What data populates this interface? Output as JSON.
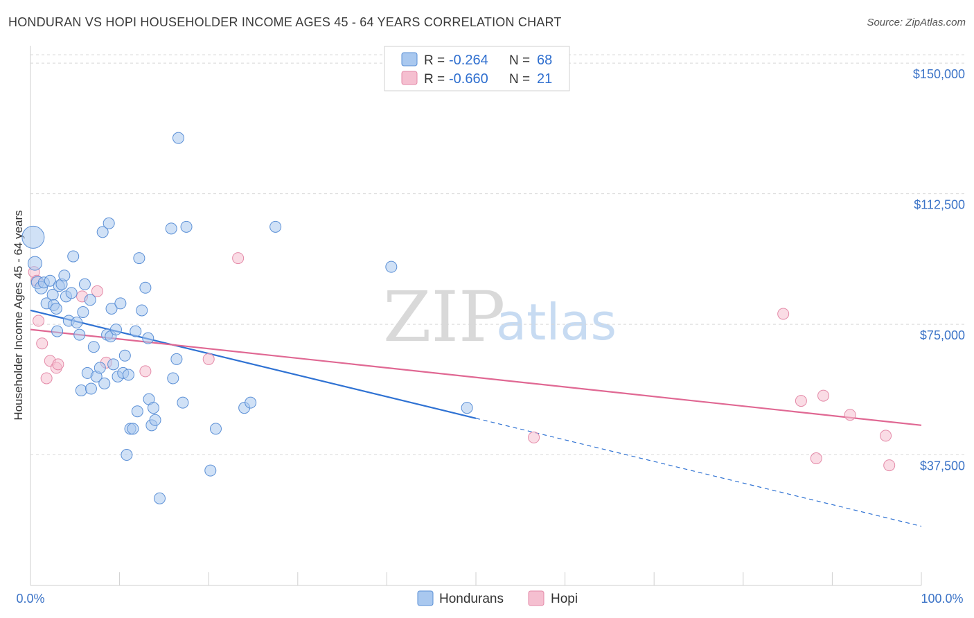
{
  "title": "HONDURAN VS HOPI HOUSEHOLDER INCOME AGES 45 - 64 YEARS CORRELATION CHART",
  "source": "Source: ZipAtlas.com",
  "watermark": {
    "zip": "ZIP",
    "atlas": "atlas"
  },
  "colors": {
    "blue_fill": "#a9c8ef",
    "blue_stroke": "#5a8fd6",
    "blue_line": "#2f72d3",
    "pink_fill": "#f5bfd0",
    "pink_stroke": "#e48aa8",
    "pink_line": "#e06893",
    "axis_label": "#3b73c7",
    "grid": "#d8d8d8"
  },
  "legend": {
    "rows": [
      {
        "r_label": "R =",
        "r_value": "-0.264",
        "n_label": "N =",
        "n_value": "68"
      },
      {
        "r_label": "R =",
        "r_value": "-0.660",
        "n_label": "N =",
        "n_value": "21"
      }
    ]
  },
  "bottom_legend": [
    "Hondurans",
    "Hopi"
  ],
  "chart_data": {
    "type": "scatter",
    "title": "HONDURAN VS HOPI HOUSEHOLDER INCOME AGES 45 - 64 YEARS CORRELATION CHART",
    "xlabel": "",
    "ylabel": "Householder Income Ages 45 - 64 years",
    "xlim": [
      0,
      100
    ],
    "ylim": [
      0,
      155000
    ],
    "x_tick_labels": [
      "0.0%",
      "100.0%"
    ],
    "y_ticks": [
      37500,
      75000,
      112500,
      150000
    ],
    "y_tick_labels": [
      "$37,500",
      "$75,000",
      "$112,500",
      "$150,000"
    ],
    "series": [
      {
        "name": "Hondurans",
        "r": -0.264,
        "n": 68,
        "trend": {
          "x0": 0,
          "y0": 79000,
          "x1": 50,
          "y1": 48000,
          "dash_to_x": 100,
          "dash_to_y": 17000
        },
        "points": [
          [
            0.3,
            100000,
            16
          ],
          [
            0.5,
            92500,
            10
          ],
          [
            0.8,
            87000,
            9
          ],
          [
            1.2,
            85500,
            9
          ],
          [
            1.5,
            87000,
            8
          ],
          [
            1.8,
            81000,
            8
          ],
          [
            2.2,
            87500,
            8
          ],
          [
            2.5,
            83500,
            8
          ],
          [
            2.6,
            80500,
            8
          ],
          [
            2.9,
            79500,
            8
          ],
          [
            3.0,
            73000,
            8
          ],
          [
            3.2,
            86000,
            8
          ],
          [
            3.5,
            86500,
            8
          ],
          [
            3.8,
            89000,
            8
          ],
          [
            4.0,
            83000,
            8
          ],
          [
            4.3,
            76000,
            8
          ],
          [
            4.6,
            84000,
            8
          ],
          [
            4.8,
            94500,
            8
          ],
          [
            5.2,
            75500,
            8
          ],
          [
            5.5,
            72000,
            8
          ],
          [
            5.7,
            56000,
            8
          ],
          [
            5.9,
            78500,
            8
          ],
          [
            6.1,
            86500,
            8
          ],
          [
            6.4,
            61000,
            8
          ],
          [
            6.7,
            82000,
            8
          ],
          [
            6.8,
            56500,
            8
          ],
          [
            7.1,
            68500,
            8
          ],
          [
            7.4,
            60000,
            8
          ],
          [
            7.8,
            62500,
            8
          ],
          [
            8.1,
            101500,
            8
          ],
          [
            8.3,
            58000,
            8
          ],
          [
            8.6,
            72000,
            8
          ],
          [
            8.8,
            104000,
            8
          ],
          [
            9.0,
            71500,
            8
          ],
          [
            9.1,
            79500,
            8
          ],
          [
            9.3,
            63500,
            8
          ],
          [
            9.6,
            73500,
            8
          ],
          [
            9.8,
            60000,
            8
          ],
          [
            10.1,
            81000,
            8
          ],
          [
            10.4,
            61000,
            8
          ],
          [
            10.6,
            66000,
            8
          ],
          [
            10.8,
            37500,
            8
          ],
          [
            11.0,
            60500,
            8
          ],
          [
            11.2,
            45000,
            8
          ],
          [
            11.5,
            45000,
            8
          ],
          [
            11.8,
            73000,
            8
          ],
          [
            12.0,
            50000,
            8
          ],
          [
            12.2,
            94000,
            8
          ],
          [
            12.5,
            79000,
            8
          ],
          [
            12.9,
            85500,
            8
          ],
          [
            13.2,
            71000,
            8
          ],
          [
            13.3,
            53500,
            8
          ],
          [
            13.6,
            46000,
            8
          ],
          [
            13.8,
            51000,
            8
          ],
          [
            14.0,
            47500,
            8
          ],
          [
            14.5,
            25000,
            8
          ],
          [
            15.8,
            102500,
            8
          ],
          [
            16.0,
            59500,
            8
          ],
          [
            16.4,
            65000,
            8
          ],
          [
            16.6,
            128500,
            8
          ],
          [
            17.1,
            52500,
            8
          ],
          [
            17.5,
            103000,
            8
          ],
          [
            20.8,
            45000,
            8
          ],
          [
            20.2,
            33000,
            8
          ],
          [
            24.0,
            51000,
            8
          ],
          [
            24.7,
            52500,
            8
          ],
          [
            27.5,
            103000,
            8
          ],
          [
            40.5,
            91500,
            8
          ],
          [
            49.0,
            51000,
            8
          ]
        ]
      },
      {
        "name": "Hopi",
        "r": -0.66,
        "n": 21,
        "trend": {
          "x0": 0,
          "y0": 73500,
          "x1": 100,
          "y1": 46000
        },
        "points": [
          [
            0.4,
            90000,
            8
          ],
          [
            0.7,
            87500,
            8
          ],
          [
            0.9,
            76000,
            8
          ],
          [
            1.3,
            69500,
            8
          ],
          [
            1.8,
            59500,
            8
          ],
          [
            2.2,
            64500,
            8
          ],
          [
            2.9,
            62500,
            8
          ],
          [
            3.1,
            63500,
            8
          ],
          [
            5.8,
            83000,
            8
          ],
          [
            7.5,
            84500,
            8
          ],
          [
            8.5,
            64000,
            8
          ],
          [
            12.9,
            61500,
            8
          ],
          [
            20.0,
            65000,
            8
          ],
          [
            23.3,
            94000,
            8
          ],
          [
            56.5,
            42500,
            8
          ],
          [
            84.5,
            78000,
            8
          ],
          [
            86.5,
            53000,
            8
          ],
          [
            88.2,
            36500,
            8
          ],
          [
            89.0,
            54500,
            8
          ],
          [
            92.0,
            49000,
            8
          ],
          [
            96.0,
            43000,
            8
          ],
          [
            96.4,
            34500,
            8
          ]
        ]
      }
    ]
  }
}
